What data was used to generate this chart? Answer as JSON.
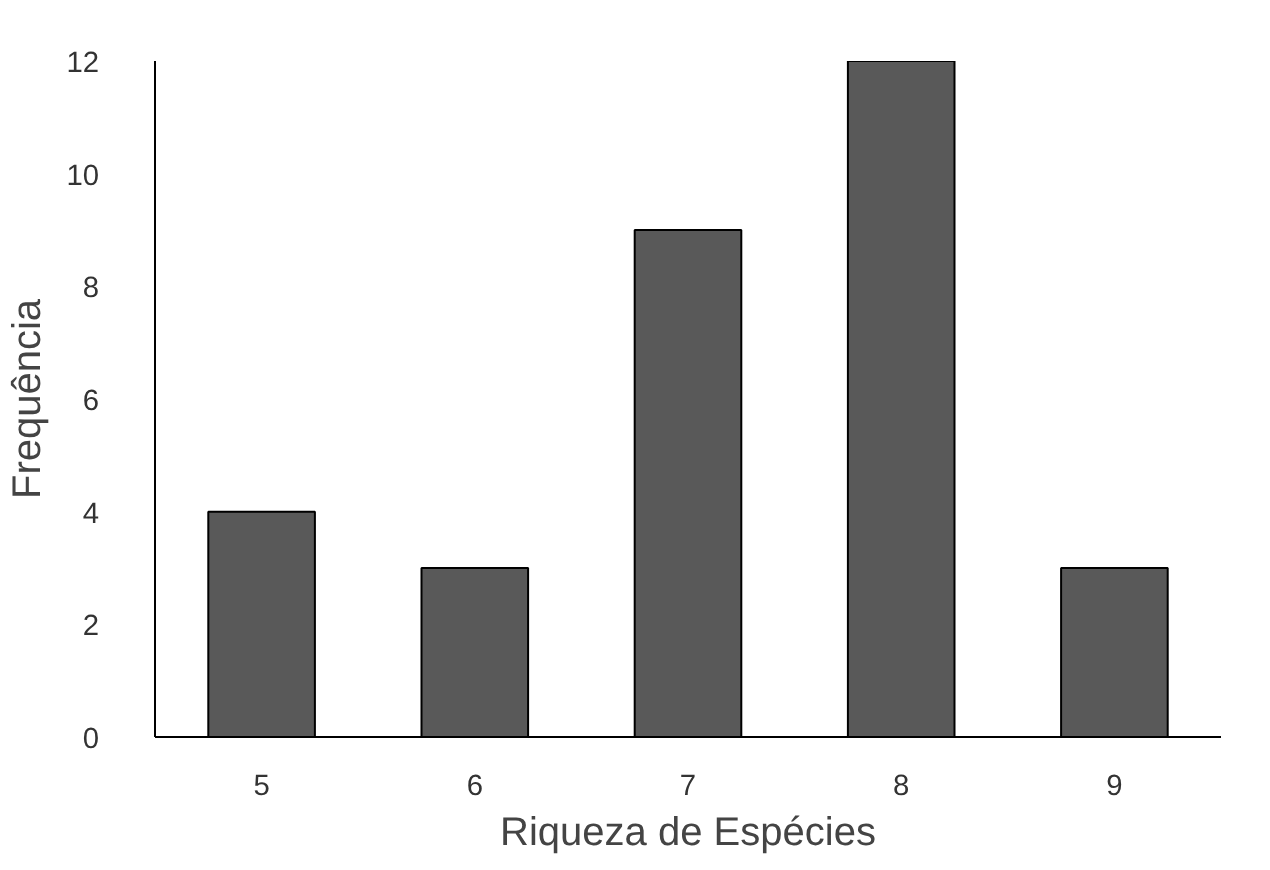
{
  "chart_data": {
    "type": "bar",
    "xlabel": "Riqueza de Espécies",
    "ylabel": "Frequência",
    "categories": [
      "5",
      "6",
      "7",
      "8",
      "9"
    ],
    "values": [
      4,
      3,
      9,
      12,
      3
    ],
    "color": "#595959",
    "ylim": [
      0,
      12
    ],
    "yticks": [
      0,
      2,
      4,
      6,
      8,
      10,
      12
    ],
    "grid": false
  }
}
